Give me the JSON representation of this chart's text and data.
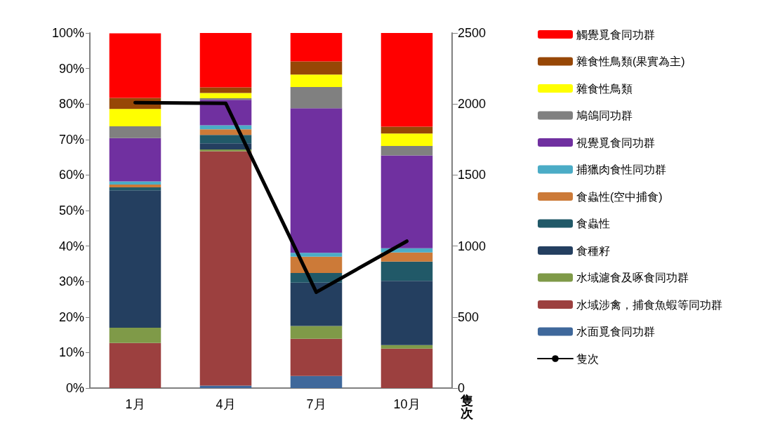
{
  "chart_data": {
    "type": "bar",
    "stacked": true,
    "categories": [
      "1月",
      "4月",
      "7月",
      "10月"
    ],
    "series": [
      {
        "name": "水面覓食同功群",
        "color": "#3f689b",
        "values": [
          0,
          0.7,
          3.4,
          0
        ]
      },
      {
        "name": "水域涉禽，捕食魚蝦等同功群",
        "color": "#9c403f",
        "values": [
          12.7,
          66.0,
          10.5,
          11.1
        ]
      },
      {
        "name": "水域濾食及啄食同功群",
        "color": "#7f9a48",
        "values": [
          4.3,
          0.5,
          3.6,
          1.0
        ]
      },
      {
        "name": "食種籽",
        "color": "#243f60",
        "values": [
          38.7,
          1.7,
          12.2,
          18.1
        ]
      },
      {
        "name": "食蟲性",
        "color": "#215968",
        "values": [
          0.8,
          2.4,
          2.7,
          5.4
        ]
      },
      {
        "name": "食蟲性(空中捕食)",
        "color": "#cc7a38",
        "values": [
          0.8,
          1.6,
          4.6,
          2.6
        ]
      },
      {
        "name": "捕獵肉食性同功群",
        "color": "#4bacc6",
        "values": [
          0.9,
          1.1,
          1.1,
          1.2
        ]
      },
      {
        "name": "視覺覓食同功群",
        "color": "#7030a0",
        "values": [
          12.2,
          7.2,
          40.7,
          26.1
        ]
      },
      {
        "name": "鳩鴿同功群",
        "color": "#808080",
        "values": [
          3.3,
          0.4,
          6.0,
          2.7
        ]
      },
      {
        "name": "雜食性鳥類",
        "color": "#ffff00",
        "values": [
          4.9,
          1.5,
          3.5,
          3.5
        ]
      },
      {
        "name": "雜食性鳥類(果實為主)",
        "color": "#974706",
        "values": [
          3.1,
          1.6,
          3.7,
          1.9
        ]
      },
      {
        "name": "觸覺覓食同功群",
        "color": "#ff0000",
        "values": [
          18.2,
          15.3,
          8.0,
          26.4
        ]
      },
      {
        "name": "隻次",
        "type": "line",
        "axis": "y2",
        "color": "#000000",
        "values": [
          2010,
          2005,
          675,
          1034
        ]
      }
    ],
    "ylim": [
      0,
      100
    ],
    "yticks": [
      {
        "value": 0,
        "label": "0%"
      },
      {
        "value": 10,
        "label": "10%"
      },
      {
        "value": 20,
        "label": "20%"
      },
      {
        "value": 30,
        "label": "30%"
      },
      {
        "value": 40,
        "label": "40%"
      },
      {
        "value": 50,
        "label": "50%"
      },
      {
        "value": 60,
        "label": "60%"
      },
      {
        "value": 70,
        "label": "70%"
      },
      {
        "value": 80,
        "label": "80%"
      },
      {
        "value": 90,
        "label": "90%"
      },
      {
        "value": 100,
        "label": "100%"
      }
    ],
    "y2lim": [
      0,
      2500
    ],
    "y2ticks": [
      0,
      500,
      1000,
      1500,
      2000,
      2500
    ],
    "y2label": "隻次",
    "grid": false,
    "legend": "right",
    "marker": "none",
    "line_style": "solid"
  }
}
